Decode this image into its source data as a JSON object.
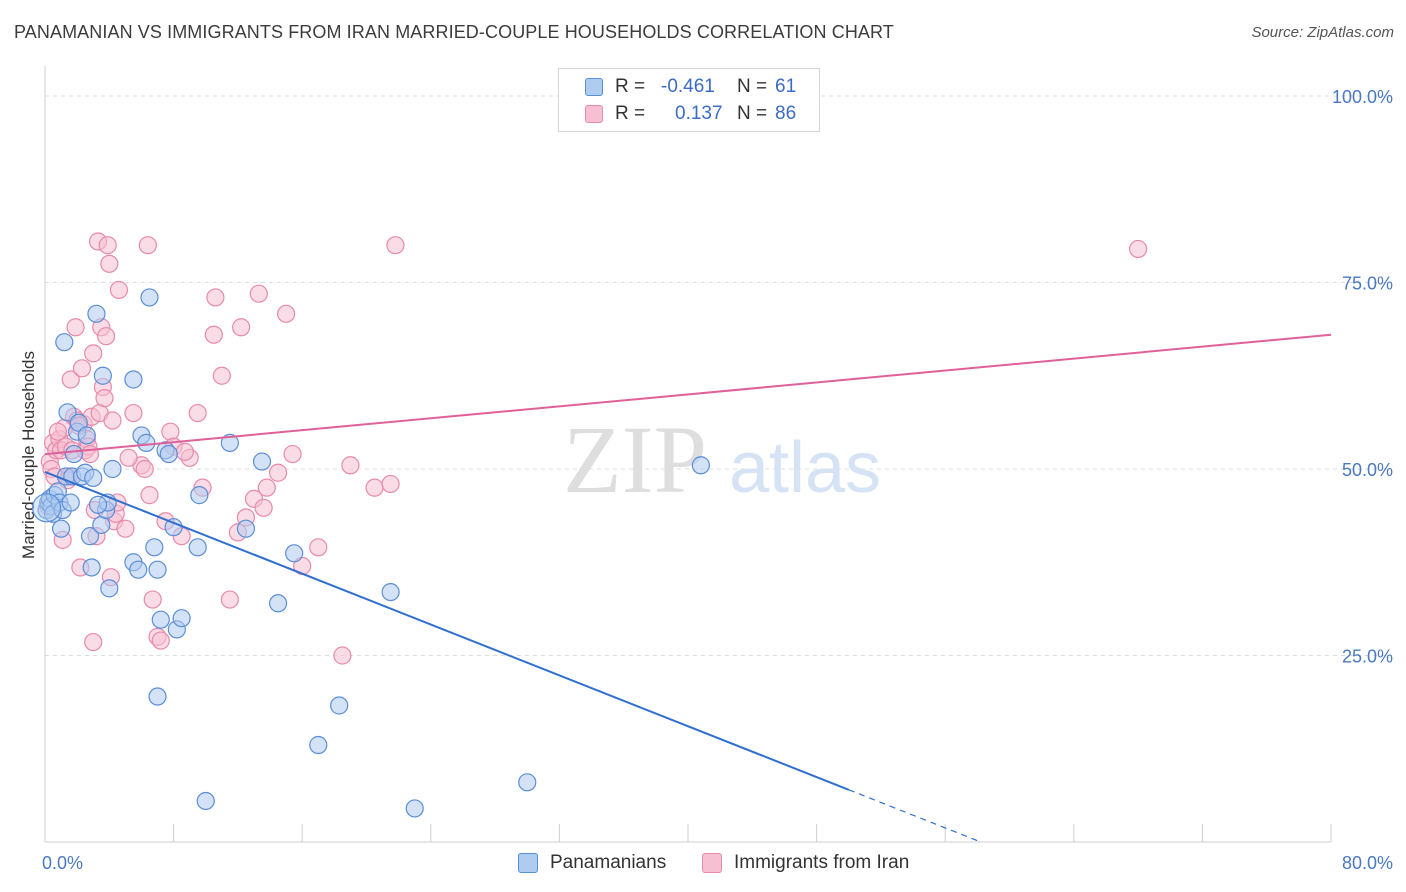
{
  "title": "PANAMANIAN VS IMMIGRANTS FROM IRAN MARRIED-COUPLE HOUSEHOLDS CORRELATION CHART",
  "source": "Source: ZipAtlas.com",
  "watermark": {
    "zip": "ZIP",
    "atlas": "atlas"
  },
  "legend": {
    "rows": [
      {
        "r_label": "R =",
        "r_value": "-0.461",
        "n_label": "N =",
        "n_value": "61"
      },
      {
        "r_label": "R =",
        "r_value": "0.137",
        "n_label": "N =",
        "n_value": "86"
      }
    ]
  },
  "colors": {
    "blue_fill": "#aecbf0",
    "blue_stroke": "#5b8ed6",
    "blue_line": "#2f6fcf",
    "pink_fill": "#f6bfd2",
    "pink_stroke": "#e88aab",
    "pink_line": "#e0609a",
    "grid": "#dcdcdc",
    "tick_text": "#4a78c2"
  },
  "chart_data": {
    "type": "scatter",
    "title": "PANAMANIAN VS IMMIGRANTS FROM IRAN MARRIED-COUPLE HOUSEHOLDS CORRELATION CHART",
    "xlabel": "",
    "ylabel": "Married-couple Households",
    "xlim": [
      0,
      80
    ],
    "ylim": [
      0,
      100
    ],
    "x_tick_labels": [
      "0.0%",
      "80.0%"
    ],
    "y_tick_values": [
      25,
      50,
      75,
      100
    ],
    "y_tick_labels": [
      "25.0%",
      "50.0%",
      "75.0%",
      "100.0%"
    ],
    "series": [
      {
        "name": "Panamanians",
        "r": -0.461,
        "n": 61,
        "trend": {
          "x0": 0,
          "y0": 49.6,
          "x1": 50,
          "y1": 7.0,
          "dash_to_x": 58
        },
        "points": [
          [
            0.1,
            44.5
          ],
          [
            0.2,
            45.5
          ],
          [
            0.3,
            46.0
          ],
          [
            0.4,
            45.0
          ],
          [
            0.5,
            44.0
          ],
          [
            0.6,
            46.5
          ],
          [
            0.8,
            47.0
          ],
          [
            0.9,
            45.5
          ],
          [
            1.0,
            42.0
          ],
          [
            1.1,
            44.5
          ],
          [
            1.3,
            49.0
          ],
          [
            1.4,
            57.6
          ],
          [
            1.6,
            45.5
          ],
          [
            1.7,
            49.0
          ],
          [
            1.8,
            52.0
          ],
          [
            2.0,
            55.0
          ],
          [
            2.1,
            56.2
          ],
          [
            2.3,
            49.0
          ],
          [
            2.5,
            49.5
          ],
          [
            2.6,
            54.5
          ],
          [
            2.8,
            41.0
          ],
          [
            2.9,
            36.8
          ],
          [
            3.0,
            48.8
          ],
          [
            3.2,
            70.8
          ],
          [
            3.5,
            42.5
          ],
          [
            3.6,
            62.5
          ],
          [
            3.8,
            44.5
          ],
          [
            3.9,
            45.5
          ],
          [
            4.0,
            34.0
          ],
          [
            4.2,
            50.0
          ],
          [
            5.5,
            37.5
          ],
          [
            5.5,
            62.0
          ],
          [
            5.8,
            36.5
          ],
          [
            6.0,
            54.5
          ],
          [
            6.3,
            53.5
          ],
          [
            6.5,
            73.0
          ],
          [
            6.8,
            39.5
          ],
          [
            7.0,
            36.5
          ],
          [
            7.2,
            29.8
          ],
          [
            7.5,
            52.5
          ],
          [
            7.7,
            52.0
          ],
          [
            8.0,
            42.2
          ],
          [
            8.2,
            28.5
          ],
          [
            8.5,
            30.0
          ],
          [
            9.5,
            39.5
          ],
          [
            9.6,
            46.5
          ],
          [
            10.0,
            5.5
          ],
          [
            11.5,
            53.5
          ],
          [
            12.5,
            42.0
          ],
          [
            13.5,
            51.0
          ],
          [
            14.5,
            32.0
          ],
          [
            15.5,
            38.7
          ],
          [
            17.0,
            13.0
          ],
          [
            18.3,
            18.3
          ],
          [
            21.5,
            33.5
          ],
          [
            23.0,
            4.5
          ],
          [
            30.0,
            8.0
          ],
          [
            40.8,
            50.5
          ],
          [
            7.0,
            19.5
          ],
          [
            1.2,
            67.0
          ],
          [
            3.3,
            45.2
          ]
        ]
      },
      {
        "name": "Immigrants from Iran",
        "r": 0.137,
        "n": 86,
        "trend": {
          "x0": 0,
          "y0": 52.0,
          "x1": 80,
          "y1": 68.0
        },
        "points": [
          [
            0.3,
            51.0
          ],
          [
            0.4,
            50.0
          ],
          [
            0.5,
            53.5
          ],
          [
            0.6,
            49.0
          ],
          [
            0.7,
            52.5
          ],
          [
            0.9,
            54.0
          ],
          [
            1.0,
            52.5
          ],
          [
            1.1,
            40.5
          ],
          [
            1.2,
            55.5
          ],
          [
            1.3,
            53.0
          ],
          [
            1.5,
            49.0
          ],
          [
            1.6,
            62.0
          ],
          [
            1.7,
            52.5
          ],
          [
            1.8,
            57.0
          ],
          [
            1.9,
            69.0
          ],
          [
            2.0,
            56.5
          ],
          [
            2.2,
            36.8
          ],
          [
            2.3,
            63.5
          ],
          [
            2.4,
            56.0
          ],
          [
            2.5,
            52.5
          ],
          [
            2.6,
            54.0
          ],
          [
            2.7,
            53.0
          ],
          [
            2.8,
            52.0
          ],
          [
            2.9,
            57.0
          ],
          [
            3.0,
            65.5
          ],
          [
            3.1,
            44.5
          ],
          [
            3.2,
            41.0
          ],
          [
            3.3,
            80.5
          ],
          [
            3.4,
            57.5
          ],
          [
            3.5,
            69.0
          ],
          [
            3.6,
            61.0
          ],
          [
            3.7,
            59.5
          ],
          [
            3.8,
            67.8
          ],
          [
            3.9,
            80.0
          ],
          [
            4.0,
            77.5
          ],
          [
            4.1,
            35.5
          ],
          [
            4.2,
            56.5
          ],
          [
            4.3,
            43.0
          ],
          [
            4.4,
            44.0
          ],
          [
            4.5,
            45.5
          ],
          [
            4.6,
            74.0
          ],
          [
            5.0,
            42.0
          ],
          [
            5.5,
            57.5
          ],
          [
            6.0,
            50.5
          ],
          [
            6.2,
            50.0
          ],
          [
            6.4,
            80.0
          ],
          [
            6.7,
            32.5
          ],
          [
            7.0,
            27.5
          ],
          [
            7.2,
            27.0
          ],
          [
            7.5,
            43.0
          ],
          [
            7.8,
            55.0
          ],
          [
            8.0,
            53.0
          ],
          [
            8.5,
            41.0
          ],
          [
            9.0,
            51.5
          ],
          [
            9.5,
            57.5
          ],
          [
            9.8,
            47.5
          ],
          [
            10.5,
            68.0
          ],
          [
            10.6,
            73.0
          ],
          [
            11.0,
            62.5
          ],
          [
            11.5,
            32.5
          ],
          [
            12.0,
            41.5
          ],
          [
            12.2,
            69.0
          ],
          [
            12.5,
            43.5
          ],
          [
            13.0,
            46.0
          ],
          [
            13.3,
            73.5
          ],
          [
            13.8,
            47.5
          ],
          [
            14.5,
            49.5
          ],
          [
            15.0,
            70.8
          ],
          [
            15.4,
            52.0
          ],
          [
            16.0,
            37.0
          ],
          [
            17.0,
            39.5
          ],
          [
            18.5,
            25.0
          ],
          [
            19.0,
            50.5
          ],
          [
            20.5,
            47.5
          ],
          [
            21.5,
            48.0
          ],
          [
            21.8,
            80.0
          ],
          [
            68.0,
            79.5
          ],
          [
            0.8,
            55.0
          ],
          [
            1.4,
            48.5
          ],
          [
            2.1,
            55.8
          ],
          [
            3.0,
            26.8
          ],
          [
            5.2,
            51.5
          ],
          [
            6.5,
            46.5
          ],
          [
            8.7,
            52.3
          ],
          [
            13.6,
            44.8
          ],
          [
            0.2,
            45.0
          ]
        ]
      }
    ]
  },
  "bottom_legend": [
    {
      "label": "Panamanians"
    },
    {
      "label": "Immigrants from Iran"
    }
  ]
}
